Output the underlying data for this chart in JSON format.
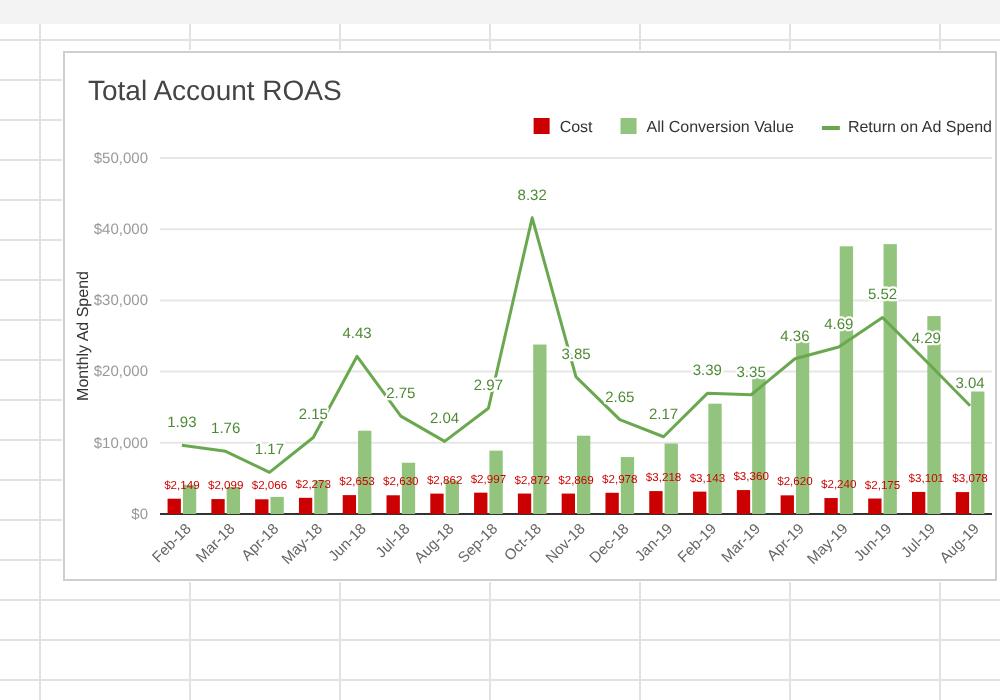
{
  "chart_data": {
    "type": "bar",
    "title": "Total Account ROAS",
    "ylabel": "Monthly Ad Spend",
    "categories": [
      "Feb-18",
      "Mar-18",
      "Apr-18",
      "May-18",
      "Jun-18",
      "Jul-18",
      "Aug-18",
      "Sep-18",
      "Oct-18",
      "Nov-18",
      "Dec-18",
      "Jan-19",
      "Feb-19",
      "Mar-19",
      "Apr-19",
      "May-19",
      "Jun-19",
      "Jul-19",
      "Aug-19"
    ],
    "series": [
      {
        "name": "Cost",
        "color": "#cc0000",
        "values": [
          2149,
          2099,
          2066,
          2273,
          2653,
          2630,
          2862,
          2997,
          2872,
          2869,
          2978,
          3218,
          3143,
          3360,
          2620,
          2240,
          2175,
          3101,
          3078
        ],
        "value_labels": [
          "$2,149",
          "$2,099",
          "$2,066",
          "$2,273",
          "$2,653",
          "$2,630",
          "$2,862",
          "$2,997",
          "$2,872",
          "$2,869",
          "$2,978",
          "$3,218",
          "$3,143",
          "$3,360",
          "$2,620",
          "$2,240",
          "$2,175",
          "$3,101",
          "$3,078"
        ]
      },
      {
        "name": "All Conversion Value",
        "color": "#93c47d",
        "values": [
          4100,
          3800,
          2400,
          4700,
          11700,
          7200,
          4700,
          8900,
          23800,
          11000,
          8000,
          9900,
          15500,
          19300,
          24200,
          37600,
          37900,
          27800,
          17200
        ]
      },
      {
        "name": "Return on Ad Spend",
        "type": "line",
        "axis": "y2",
        "color": "#6aa84f",
        "values": [
          1.93,
          1.76,
          1.17,
          2.15,
          4.43,
          2.75,
          2.04,
          2.97,
          8.32,
          3.85,
          2.65,
          2.17,
          3.39,
          3.35,
          4.36,
          4.69,
          5.52,
          4.29,
          3.04
        ],
        "value_labels": [
          "1.93",
          "1.76",
          "1.17",
          "2.15",
          "4.43",
          "2.75",
          "2.04",
          "2.97",
          "8.32",
          "3.85",
          "2.65",
          "2.17",
          "3.39",
          "3.35",
          "4.36",
          "4.69",
          "5.52",
          "4.29",
          "3.04"
        ]
      }
    ],
    "ylim": [
      0,
      50000
    ],
    "yticks": [
      {
        "value": 0,
        "label": "$0"
      },
      {
        "value": 10000,
        "label": "$10,000"
      },
      {
        "value": 20000,
        "label": "$20,000"
      },
      {
        "value": 30000,
        "label": "$30,000"
      },
      {
        "value": 40000,
        "label": "$40,000"
      },
      {
        "value": 50000,
        "label": "$50,000"
      }
    ],
    "y2lim": [
      0,
      10
    ],
    "grid": "y",
    "legend": "top right",
    "line_style": "solid",
    "marker": "none"
  }
}
